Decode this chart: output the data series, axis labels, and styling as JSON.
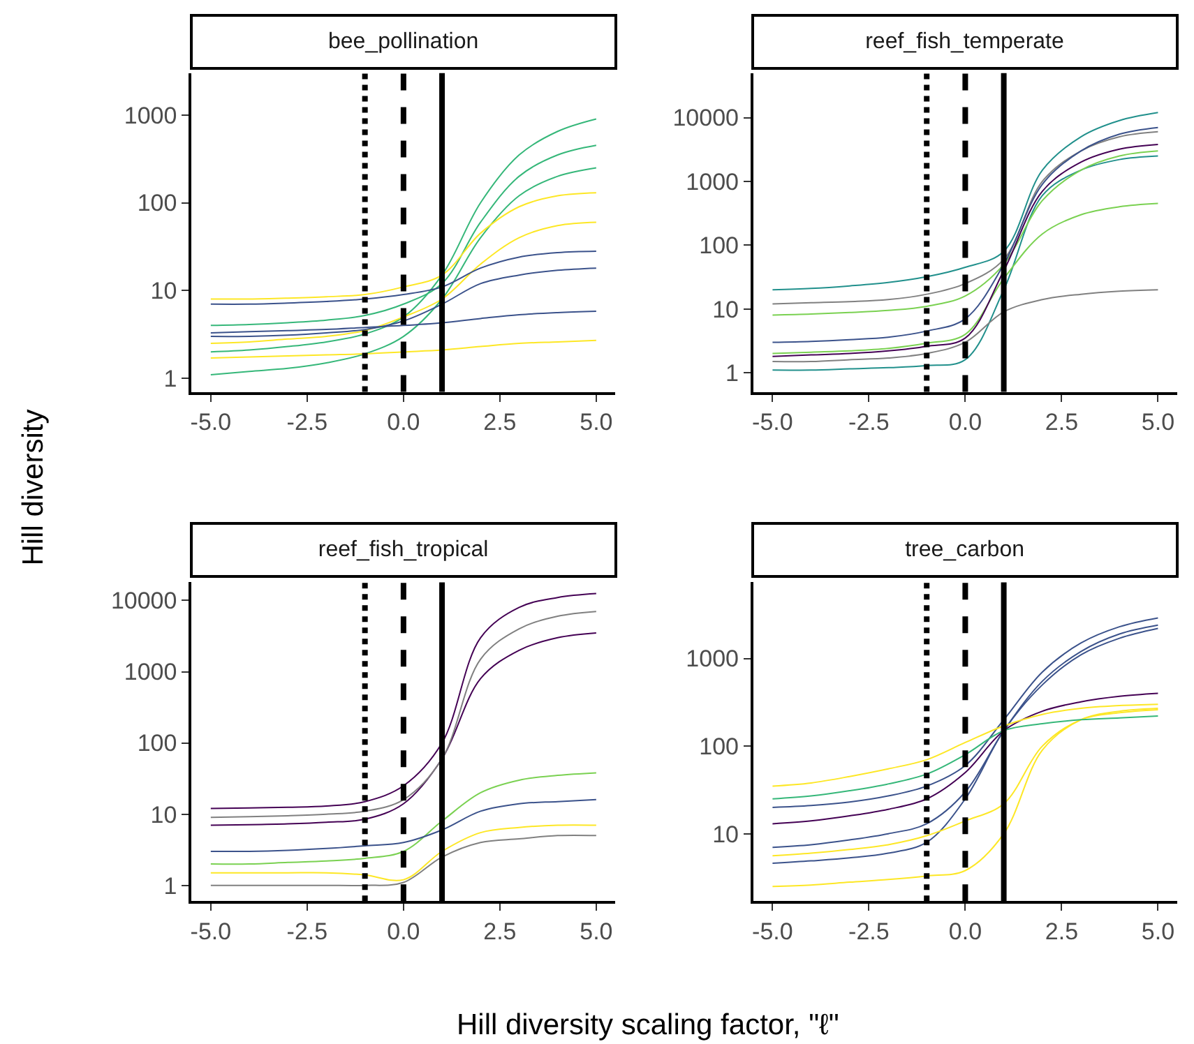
{
  "chart_data": [
    {
      "type": "line",
      "title": "bee_pollination",
      "ylabel": "Hill diversity",
      "log": true,
      "grid": false,
      "x": [
        -5,
        -4,
        -3,
        -2,
        -1,
        0,
        1,
        2,
        3,
        4,
        5
      ],
      "xlim": [
        -5.5,
        5.5
      ],
      "xticks": [
        {
          "value": -5,
          "label": "-5.0"
        },
        {
          "value": -2.5,
          "label": "-2.5"
        },
        {
          "value": 0,
          "label": "0.0"
        },
        {
          "value": 2.5,
          "label": "2.5"
        },
        {
          "value": 5,
          "label": "5.0"
        }
      ],
      "ylim": [
        0.7,
        3000
      ],
      "yticks": [
        1,
        10,
        100,
        1000
      ],
      "ref_lines": [
        {
          "axis": "x",
          "value": -1,
          "line_style": "dotted",
          "color": "#000000"
        },
        {
          "axis": "x",
          "value": 0,
          "line_style": "dashed",
          "color": "#000000"
        },
        {
          "axis": "x",
          "value": 1,
          "line_style": "solid",
          "color": "#000000"
        }
      ],
      "series": [
        {
          "color": "#35b779",
          "values": [
            2,
            2.1,
            2.3,
            2.6,
            3.2,
            5,
            15,
            100,
            350,
            650,
            900
          ]
        },
        {
          "color": "#35b779",
          "values": [
            1.1,
            1.2,
            1.3,
            1.5,
            1.9,
            3,
            8,
            40,
            120,
            200,
            250
          ]
        },
        {
          "color": "#35b779",
          "values": [
            4,
            4.1,
            4.3,
            4.6,
            5.2,
            7,
            12,
            60,
            200,
            350,
            450
          ]
        },
        {
          "color": "#fde725",
          "values": [
            8,
            8,
            8.2,
            8.5,
            9,
            11,
            15,
            45,
            90,
            120,
            130
          ]
        },
        {
          "color": "#fde725",
          "values": [
            2.5,
            2.6,
            2.8,
            3,
            3.5,
            5,
            8,
            20,
            40,
            55,
            60
          ]
        },
        {
          "color": "#fde725",
          "values": [
            1.7,
            1.75,
            1.8,
            1.85,
            1.9,
            2,
            2.1,
            2.3,
            2.5,
            2.6,
            2.7
          ]
        },
        {
          "color": "#3b528b",
          "values": [
            7,
            7,
            7.2,
            7.5,
            8,
            9,
            11,
            18,
            24,
            27,
            28
          ]
        },
        {
          "color": "#3b528b",
          "values": [
            3,
            3,
            3.1,
            3.3,
            3.6,
            4.5,
            7,
            12,
            15,
            17,
            18
          ]
        },
        {
          "color": "#3b528b",
          "values": [
            3.3,
            3.4,
            3.5,
            3.6,
            3.8,
            4,
            4.3,
            4.8,
            5.3,
            5.6,
            5.8
          ]
        }
      ]
    },
    {
      "type": "line",
      "title": "reef_fish_temperate",
      "log": true,
      "grid": false,
      "x": [
        -5,
        -4,
        -3,
        -2,
        -1,
        0,
        1,
        2,
        3,
        4,
        5
      ],
      "xlim": [
        -5.5,
        5.5
      ],
      "xticks": [
        {
          "value": -5,
          "label": "-5.0"
        },
        {
          "value": -2.5,
          "label": "-2.5"
        },
        {
          "value": 0,
          "label": "0.0"
        },
        {
          "value": 2.5,
          "label": "2.5"
        },
        {
          "value": 5,
          "label": "5.0"
        }
      ],
      "ylim": [
        0.5,
        50000
      ],
      "yticks": [
        1,
        10,
        100,
        1000,
        10000
      ],
      "ref_lines": [
        {
          "axis": "x",
          "value": -1,
          "line_style": "dotted",
          "color": "#000000"
        },
        {
          "axis": "x",
          "value": 0,
          "line_style": "dashed",
          "color": "#000000"
        },
        {
          "axis": "x",
          "value": 1,
          "line_style": "solid",
          "color": "#000000"
        }
      ],
      "series": [
        {
          "color": "#21908c",
          "values": [
            20,
            21,
            23,
            26,
            32,
            45,
            80,
            1500,
            5000,
            9000,
            12000
          ]
        },
        {
          "color": "#21908c",
          "values": [
            1.1,
            1.1,
            1.15,
            1.2,
            1.3,
            1.6,
            20,
            600,
            1500,
            2200,
            2500
          ]
        },
        {
          "color": "#808080",
          "values": [
            12,
            12.5,
            13,
            14,
            17,
            25,
            60,
            1000,
            3000,
            5000,
            6000
          ]
        },
        {
          "color": "#808080",
          "values": [
            1.5,
            1.5,
            1.6,
            1.7,
            2,
            3,
            9,
            14,
            17,
            19,
            20
          ]
        },
        {
          "color": "#7ad151",
          "values": [
            8,
            8.3,
            8.8,
            9.5,
            11,
            16,
            50,
            500,
            1500,
            2500,
            3000
          ]
        },
        {
          "color": "#7ad151",
          "values": [
            2,
            2.1,
            2.2,
            2.4,
            2.9,
            4,
            30,
            150,
            300,
            400,
            450
          ]
        },
        {
          "color": "#440154",
          "values": [
            1.8,
            1.9,
            2,
            2.2,
            2.6,
            3.5,
            40,
            700,
            2000,
            3200,
            3800
          ]
        },
        {
          "color": "#3b528b",
          "values": [
            3,
            3.1,
            3.3,
            3.6,
            4.5,
            7,
            50,
            900,
            3000,
            5500,
            7000
          ]
        }
      ]
    },
    {
      "type": "line",
      "title": "reef_fish_tropical",
      "xlabel": "Hill diversity scaling factor, \"ℓ\"",
      "log": true,
      "grid": false,
      "x": [
        -5,
        -4,
        -3,
        -2,
        -1,
        0,
        1,
        2,
        3,
        4,
        5
      ],
      "xlim": [
        -5.5,
        5.5
      ],
      "xticks": [
        {
          "value": -5,
          "label": "-5.0"
        },
        {
          "value": -2.5,
          "label": "-2.5"
        },
        {
          "value": 0,
          "label": "0.0"
        },
        {
          "value": 2.5,
          "label": "2.5"
        },
        {
          "value": 5,
          "label": "5.0"
        }
      ],
      "ylim": [
        0.6,
        18000
      ],
      "yticks": [
        1,
        10,
        100,
        1000,
        10000
      ],
      "ref_lines": [
        {
          "axis": "x",
          "value": -1,
          "line_style": "dotted",
          "color": "#000000"
        },
        {
          "axis": "x",
          "value": 0,
          "line_style": "dashed",
          "color": "#000000"
        },
        {
          "axis": "x",
          "value": 1,
          "line_style": "solid",
          "color": "#000000"
        }
      ],
      "series": [
        {
          "color": "#440154",
          "values": [
            12,
            12.2,
            12.5,
            13,
            15,
            25,
            100,
            3000,
            8000,
            11000,
            12500
          ]
        },
        {
          "color": "#440154",
          "values": [
            7,
            7.1,
            7.3,
            7.7,
            8.5,
            14,
            60,
            800,
            2000,
            3000,
            3500
          ]
        },
        {
          "color": "#808080",
          "values": [
            9,
            9.2,
            9.5,
            10,
            11,
            16,
            60,
            1500,
            4000,
            6000,
            7000
          ]
        },
        {
          "color": "#808080",
          "values": [
            1,
            1,
            1,
            1,
            1,
            1.1,
            2.5,
            4,
            4.5,
            5,
            5
          ]
        },
        {
          "color": "#7ad151",
          "values": [
            2,
            2,
            2.1,
            2.2,
            2.4,
            3,
            8,
            20,
            30,
            35,
            38
          ]
        },
        {
          "color": "#3b528b",
          "values": [
            3,
            3,
            3.1,
            3.3,
            3.6,
            4,
            6,
            11,
            14,
            15,
            16
          ]
        },
        {
          "color": "#fde725",
          "values": [
            1.5,
            1.5,
            1.5,
            1.5,
            1.4,
            1.2,
            3,
            5.5,
            6.5,
            7,
            7
          ]
        }
      ]
    },
    {
      "type": "line",
      "title": "tree_carbon",
      "log": true,
      "grid": false,
      "x": [
        -5,
        -4,
        -3,
        -2,
        -1,
        0,
        1,
        2,
        3,
        4,
        5
      ],
      "xlim": [
        -5.5,
        5.5
      ],
      "xticks": [
        {
          "value": -5,
          "label": "-5.0"
        },
        {
          "value": -2.5,
          "label": "-2.5"
        },
        {
          "value": 0,
          "label": "0.0"
        },
        {
          "value": 2.5,
          "label": "2.5"
        },
        {
          "value": 5,
          "label": "5.0"
        }
      ],
      "ylim": [
        1.7,
        7400
      ],
      "yticks": [
        10,
        100,
        1000
      ],
      "ref_lines": [
        {
          "axis": "x",
          "value": -1,
          "line_style": "dotted",
          "color": "#000000"
        },
        {
          "axis": "x",
          "value": 0,
          "line_style": "dashed",
          "color": "#000000"
        },
        {
          "axis": "x",
          "value": 1,
          "line_style": "solid",
          "color": "#000000"
        }
      ],
      "series": [
        {
          "color": "#3b528b",
          "values": [
            20,
            21,
            23,
            27,
            35,
            60,
            200,
            700,
            1500,
            2300,
            2900
          ]
        },
        {
          "color": "#3b528b",
          "values": [
            7,
            7.5,
            8.5,
            10,
            13,
            30,
            150,
            550,
            1200,
            1900,
            2400
          ]
        },
        {
          "color": "#3b528b",
          "values": [
            4.6,
            4.9,
            5.3,
            6,
            8,
            25,
            150,
            500,
            1100,
            1700,
            2200
          ]
        },
        {
          "color": "#440154",
          "values": [
            13,
            14,
            16,
            19,
            25,
            50,
            150,
            250,
            320,
            370,
            400
          ]
        },
        {
          "color": "#fde725",
          "values": [
            35,
            38,
            45,
            55,
            70,
            110,
            170,
            230,
            270,
            290,
            300
          ]
        },
        {
          "color": "#fde725",
          "values": [
            2.5,
            2.6,
            2.8,
            3,
            3.3,
            3.8,
            10,
            90,
            200,
            250,
            270
          ]
        },
        {
          "color": "#fde725",
          "values": [
            5.6,
            6,
            6.6,
            7.5,
            9.5,
            14,
            22,
            100,
            200,
            240,
            260
          ]
        },
        {
          "color": "#35b779",
          "values": [
            25,
            27,
            31,
            37,
            48,
            80,
            150,
            180,
            200,
            210,
            220
          ]
        }
      ]
    }
  ]
}
